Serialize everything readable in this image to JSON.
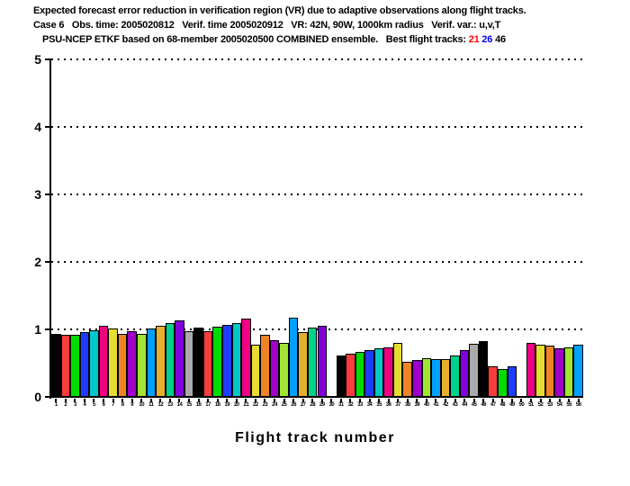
{
  "header": {
    "line1": "Expected forecast error reduction in verification region (VR) due to adaptive observations along flight tracks.",
    "line2": "Case 6   Obs. time: 2005020812   Verif. time 2005020912   VR: 42N, 90W, 1000km radius   Verif. var.: u,v,T",
    "line3_prefix": "PSU-NCEP ETKF based on 68-member 2005020500 COMBINED ensemble.   Best flight tracks: ",
    "track21": {
      "text": "21",
      "color": "#ff0000"
    },
    "track26": {
      "text": "26",
      "color": "#0000ff"
    },
    "track46": {
      "text": "46",
      "color": "#000000"
    }
  },
  "chart_data": {
    "type": "bar",
    "title": "Expected forecast error reduction in verification region (VR) due to adaptive observations along flight tracks.",
    "subtitle1": "Case 6   Obs. time: 2005020812   Verif. time 2005020912   VR: 42N, 90W, 1000km radius   Verif. var.: u,v,T",
    "subtitle2": "PSU-NCEP ETKF based on 68-member 2005020500 COMBINED ensemble.   Best flight tracks: 21 26 46",
    "xlabel": "Flight track number",
    "ylabel": "",
    "ylim": [
      0,
      5
    ],
    "yticks": [
      0,
      1,
      2,
      3,
      4,
      5
    ],
    "grid": "dotted-horizontal-at-integers",
    "legend": "none",
    "best_tracks": [
      21,
      26,
      46
    ],
    "missing_tracks": [
      30,
      50
    ],
    "palette_cycle": [
      "#000000",
      "#fa3c3c",
      "#00dc00",
      "#1e3cff",
      "#00c8c8",
      "#f00082",
      "#e6dc32",
      "#f08228",
      "#a000c8",
      "#a0e632",
      "#00a0ff",
      "#e6af2d",
      "#00d28c",
      "#8200dc",
      "#aaaaaa"
    ],
    "categories": [
      1,
      2,
      3,
      4,
      5,
      6,
      7,
      8,
      9,
      10,
      11,
      12,
      13,
      14,
      15,
      16,
      17,
      18,
      19,
      20,
      21,
      22,
      23,
      24,
      25,
      26,
      27,
      28,
      29,
      30,
      31,
      32,
      33,
      34,
      35,
      36,
      37,
      38,
      39,
      40,
      41,
      42,
      43,
      44,
      45,
      46,
      47,
      48,
      49,
      50,
      51,
      52,
      53,
      54,
      55,
      56
    ],
    "values": [
      0.93,
      0.92,
      0.92,
      0.96,
      0.99,
      1.05,
      1.01,
      0.93,
      0.98,
      0.93,
      1.02,
      1.06,
      1.09,
      1.13,
      0.97,
      1.03,
      0.98,
      1.04,
      1.07,
      1.09,
      1.16,
      0.77,
      0.92,
      0.84,
      0.8,
      1.17,
      0.96,
      1.03,
      1.05,
      null,
      0.62,
      0.64,
      0.67,
      0.69,
      0.72,
      0.73,
      0.8,
      0.52,
      0.55,
      0.58,
      0.56,
      0.56,
      0.62,
      0.69,
      0.79,
      0.83,
      0.45,
      0.42,
      0.45,
      null,
      0.8,
      0.77,
      0.76,
      0.72,
      0.74,
      0.78
    ]
  }
}
